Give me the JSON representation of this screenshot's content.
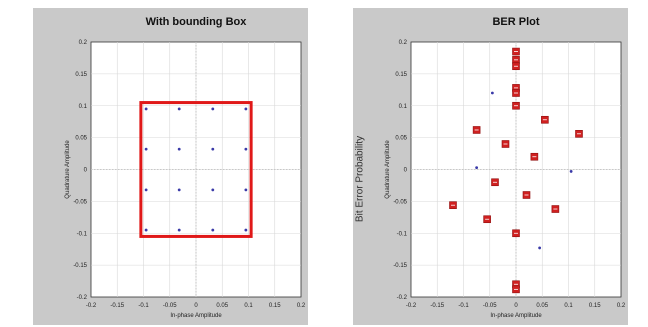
{
  "chart_data": [
    {
      "type": "scatter",
      "title": "With bounding Box",
      "xlabel": "In-phase Amplitude",
      "ylabel": "Quadrature Amplitude",
      "xlim": [
        -0.2,
        0.2
      ],
      "ylim": [
        -0.2,
        0.2
      ],
      "xticks": [
        "-0.2",
        "-0.15",
        "-0.1",
        "-0.05",
        "0",
        "0.05",
        "0.1",
        "0.15",
        "0.2"
      ],
      "yticks": [
        "0.2",
        "0.15",
        "0.1",
        "0.05",
        "0",
        "-0.05",
        "-0.1",
        "-0.15",
        "-0.2"
      ],
      "grid": true,
      "points": [
        [
          -0.095,
          0.095
        ],
        [
          -0.032,
          0.095
        ],
        [
          0.032,
          0.095
        ],
        [
          0.095,
          0.095
        ],
        [
          -0.095,
          0.032
        ],
        [
          -0.032,
          0.032
        ],
        [
          0.032,
          0.032
        ],
        [
          0.095,
          0.032
        ],
        [
          -0.095,
          -0.032
        ],
        [
          -0.032,
          -0.032
        ],
        [
          0.032,
          -0.032
        ],
        [
          0.095,
          -0.032
        ],
        [
          -0.095,
          -0.095
        ],
        [
          -0.032,
          -0.095
        ],
        [
          0.032,
          -0.095
        ],
        [
          0.095,
          -0.095
        ]
      ],
      "bounding_box": {
        "x": [
          -0.105,
          0.105
        ],
        "y": [
          -0.105,
          0.105
        ]
      },
      "colors": {
        "points": "#3a3aa8",
        "box": "#e01818"
      }
    },
    {
      "type": "scatter",
      "title": "BER Plot",
      "xlabel": "In-phase Amplitude",
      "ylabel": "Quadrature Amplitude",
      "side_label": "Bit Error Probability",
      "xlim": [
        -0.2,
        0.2
      ],
      "ylim": [
        -0.2,
        0.2
      ],
      "xticks": [
        "-0.2",
        "-0.15",
        "-0.1",
        "-0.05",
        "0",
        "0.05",
        "0.1",
        "0.15",
        "0.2"
      ],
      "yticks": [
        "0.2",
        "0.15",
        "0.1",
        "0.05",
        "0",
        "-0.05",
        "-0.1",
        "-0.15",
        "-0.2"
      ],
      "grid": true,
      "points": [
        [
          -0.045,
          0.12
        ],
        [
          -0.075,
          0.003
        ],
        [
          0.105,
          -0.003
        ],
        [
          0.045,
          -0.123
        ]
      ],
      "markers": [
        [
          0,
          0.185
        ],
        [
          0,
          0.172
        ],
        [
          0,
          0.162
        ],
        [
          0,
          0.128
        ],
        [
          0,
          0.12
        ],
        [
          0,
          0.1
        ],
        [
          -0.075,
          0.062
        ],
        [
          0.055,
          0.078
        ],
        [
          0.12,
          0.056
        ],
        [
          -0.02,
          0.04
        ],
        [
          0.035,
          0.02
        ],
        [
          -0.04,
          -0.02
        ],
        [
          0.02,
          -0.04
        ],
        [
          -0.12,
          -0.056
        ],
        [
          0.075,
          -0.062
        ],
        [
          -0.055,
          -0.078
        ],
        [
          0,
          -0.1
        ],
        [
          0,
          -0.18
        ],
        [
          0,
          -0.188
        ]
      ],
      "colors": {
        "points": "#3a3aa8",
        "markers": "#d02020"
      }
    }
  ]
}
